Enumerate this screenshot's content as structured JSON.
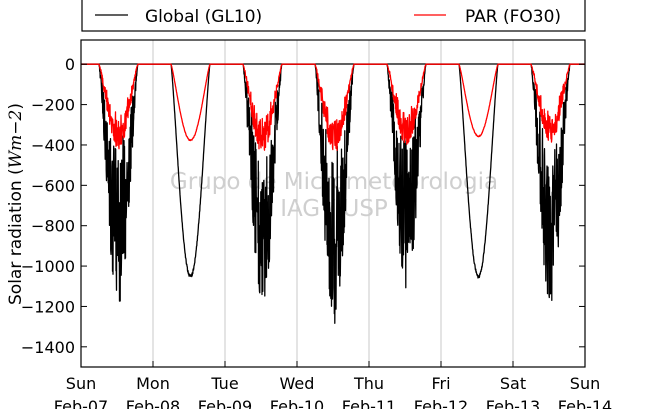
{
  "chart_data": {
    "type": "line",
    "ylabel": "Solar radiation (Wm−2)",
    "ylabel_main": "Solar radiation (",
    "ylabel_unit": "Wm",
    "ylabel_exp": "−2",
    "ylabel_close": ")",
    "ylim": [
      -1500,
      120
    ],
    "yticks": [
      0,
      -200,
      -400,
      -600,
      -800,
      -1000,
      -1200,
      -1400
    ],
    "ytick_labels": [
      "0",
      "−200",
      "−400",
      "−600",
      "−800",
      "−1000",
      "−1200",
      "−1400"
    ],
    "xlim": [
      0,
      7
    ],
    "xticks": [
      0,
      1,
      2,
      3,
      4,
      5,
      6,
      7
    ],
    "xtick_labels": [
      [
        "Sun",
        "Feb-07"
      ],
      [
        "Mon",
        "Feb-08"
      ],
      [
        "Tue",
        "Feb-09"
      ],
      [
        "Wed",
        "Feb-10"
      ],
      [
        "Thu",
        "Feb-11"
      ],
      [
        "Fri",
        "Feb-12"
      ],
      [
        "Sat",
        "Feb-13"
      ],
      [
        "Sun",
        "Feb-14"
      ]
    ],
    "grid": "vertical",
    "legend_position": "top",
    "series": [
      {
        "name": "Global (GL10)",
        "color": "#000000",
        "days": [
          {
            "peak": -1190,
            "cloudy": true
          },
          {
            "peak": -1060,
            "cloudy": false
          },
          {
            "peak": -1185,
            "cloudy": true
          },
          {
            "peak": -1290,
            "cloudy": true
          },
          {
            "peak": -1110,
            "cloudy": true
          },
          {
            "peak": -1060,
            "cloudy": false
          },
          {
            "peak": -1180,
            "cloudy": true
          }
        ]
      },
      {
        "name": "PAR (FO30)",
        "color": "#ff0000",
        "days": [
          {
            "peak": -420,
            "cloudy": true
          },
          {
            "peak": -380,
            "cloudy": false
          },
          {
            "peak": -440,
            "cloudy": true
          },
          {
            "peak": -440,
            "cloudy": true
          },
          {
            "peak": -400,
            "cloudy": true
          },
          {
            "peak": -360,
            "cloudy": false
          },
          {
            "peak": -390,
            "cloudy": true
          }
        ]
      }
    ]
  },
  "watermark": [
    "Grupo de Micrometeorologia",
    "IAG / USP"
  ]
}
